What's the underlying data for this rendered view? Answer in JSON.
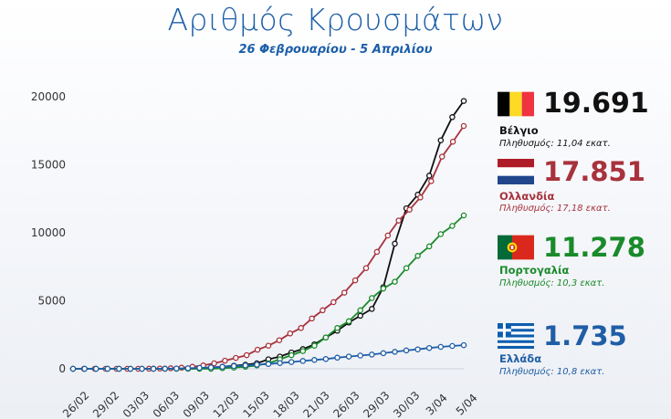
{
  "chart_data": {
    "type": "line",
    "title": "Αριθμός Κρουσμάτων",
    "subtitle": "26 Φεβρουαρίου - 5 Απριλίου",
    "xlabel": "",
    "ylabel": "",
    "ylim": [
      0,
      20000
    ],
    "yticks": [
      "0",
      "5000",
      "10000",
      "15000",
      "20000"
    ],
    "grid": false,
    "x_tick_labels": [
      "26/02",
      "29/02",
      "03/03",
      "06/03",
      "09/03",
      "12/03",
      "15/03",
      "18/03",
      "21/03",
      "26/03",
      "29/03",
      "30/03",
      "3/04",
      "5/04"
    ],
    "series": [
      {
        "name": "Βέλγιο",
        "color": "#111111",
        "values": [
          0,
          0,
          0,
          0,
          0,
          0,
          0,
          5,
          8,
          10,
          20,
          50,
          100,
          150,
          230,
          300,
          400,
          700,
          900,
          1200,
          1450,
          1800,
          2300,
          2800,
          3400,
          3900,
          4400,
          6000,
          9200,
          11800,
          12800,
          14200,
          16800,
          18500,
          19691
        ]
      },
      {
        "name": "Ολλανδία",
        "color": "#a8323c",
        "values": [
          0,
          0,
          0,
          0,
          0,
          0,
          0,
          10,
          20,
          40,
          80,
          150,
          250,
          400,
          600,
          800,
          1000,
          1400,
          1700,
          2100,
          2600,
          3000,
          3700,
          4300,
          4900,
          5600,
          6500,
          7400,
          8600,
          9800,
          10900,
          11700,
          12600,
          13800,
          15600,
          16700,
          17851
        ]
      },
      {
        "name": "Πορτογαλία",
        "color": "#1a8a2a",
        "values": [
          0,
          0,
          0,
          0,
          0,
          0,
          0,
          0,
          0,
          0,
          0,
          0,
          0,
          50,
          90,
          150,
          250,
          400,
          700,
          1000,
          1300,
          1700,
          2300,
          3000,
          3500,
          4300,
          5200,
          5900,
          6400,
          7400,
          8300,
          9000,
          9900,
          10500,
          11278
        ]
      },
      {
        "name": "Ελλάδα",
        "color": "#1f5ea6",
        "values": [
          0,
          0,
          0,
          0,
          0,
          0,
          0,
          0,
          10,
          20,
          40,
          70,
          100,
          150,
          200,
          250,
          300,
          350,
          420,
          500,
          580,
          650,
          720,
          820,
          900,
          970,
          1050,
          1150,
          1250,
          1350,
          1430,
          1530,
          1610,
          1680,
          1735
        ]
      }
    ]
  },
  "legend": [
    {
      "flag": "belgium-flag",
      "value": "19.691",
      "country": "Βέλγιο",
      "population": "Πληθυσμός: 11,04 εκατ.",
      "color": "#111111"
    },
    {
      "flag": "netherlands-flag",
      "value": "17.851",
      "country": "Ολλανδία",
      "population": "Πληθυσμός: 17,18 εκατ.",
      "color": "#a8323c"
    },
    {
      "flag": "portugal-flag",
      "value": "11.278",
      "country": "Πορτογαλία",
      "population": "Πληθυσμός: 10,3 εκατ.",
      "color": "#1a8a2a"
    },
    {
      "flag": "greece-flag",
      "value": "1.735",
      "country": "Ελλάδα",
      "population": "Πληθυσμός: 10,8 εκατ.",
      "color": "#1f5ea6"
    }
  ]
}
